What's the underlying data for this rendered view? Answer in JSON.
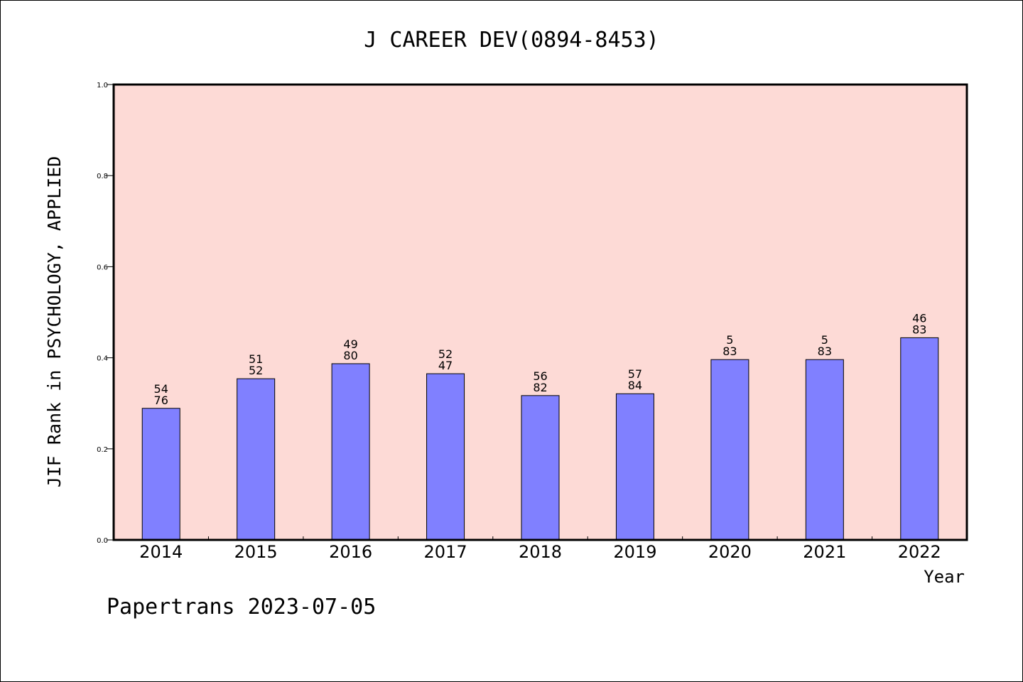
{
  "chart_data": {
    "type": "bar",
    "title": "J CAREER DEV(0894-8453)",
    "xlabel": "Year",
    "ylabel": "JIF Rank in PSYCHOLOGY, APPLIED",
    "ylim": [
      0,
      1.0
    ],
    "yticks": [
      "0.0",
      "0.2",
      "0.4",
      "0.6",
      "0.8",
      "1.0"
    ],
    "categories": [
      "2014",
      "2015",
      "2016",
      "2017",
      "2018",
      "2019",
      "2020",
      "2021",
      "2022"
    ],
    "values": [
      0.289,
      0.354,
      0.387,
      0.365,
      0.317,
      0.321,
      0.396,
      0.396,
      0.444
    ],
    "rank": [
      "54",
      "51",
      "49",
      "52",
      "56",
      "57",
      "5",
      "5",
      "46"
    ],
    "total": [
      "76",
      "52",
      "80",
      "47",
      "82",
      "84",
      "83",
      "83",
      "83"
    ],
    "grid": false,
    "colors": {
      "plot_bg": "#fddad6",
      "bar": "#8080ff",
      "bar_edge": "#000000"
    }
  },
  "footer": "Papertrans 2023-07-05"
}
